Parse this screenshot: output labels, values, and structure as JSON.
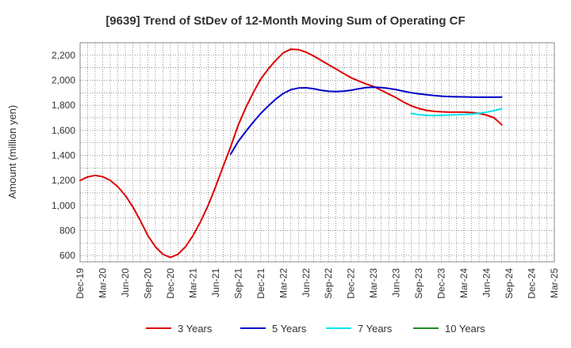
{
  "chart_data": {
    "type": "line",
    "title": "[9639]  Trend of StDev of 12-Month Moving Sum of Operating CF",
    "xlabel": "",
    "ylabel": "Amount (million yen)",
    "ylim": [
      550,
      2300
    ],
    "yticks": [
      600,
      800,
      1000,
      1200,
      1400,
      1600,
      1800,
      2000,
      2200
    ],
    "ytick_labels": [
      "600",
      "800",
      "1,000",
      "1,200",
      "1,400",
      "1,600",
      "1,800",
      "2,000",
      "2,200"
    ],
    "categories": [
      "Dec-19",
      "Mar-20",
      "Jun-20",
      "Sep-20",
      "Dec-20",
      "Mar-21",
      "Jun-21",
      "Sep-21",
      "Dec-21",
      "Mar-22",
      "Jun-22",
      "Sep-22",
      "Dec-22",
      "Mar-23",
      "Jun-23",
      "Sep-23",
      "Dec-23",
      "Mar-24",
      "Jun-24",
      "Sep-24",
      "Dec-24",
      "Mar-25"
    ],
    "grid": true,
    "legend_position": "bottom",
    "series": [
      {
        "name": "3 Years",
        "color": "#dd0000",
        "points": [
          [
            0,
            1200
          ],
          [
            0.333,
            1228
          ],
          [
            0.667,
            1240
          ],
          [
            1,
            1230
          ],
          [
            1.333,
            1200
          ],
          [
            1.667,
            1150
          ],
          [
            2,
            1080
          ],
          [
            2.333,
            990
          ],
          [
            2.667,
            880
          ],
          [
            3,
            760
          ],
          [
            3.333,
            670
          ],
          [
            3.667,
            610
          ],
          [
            4,
            585
          ],
          [
            4.333,
            610
          ],
          [
            4.667,
            670
          ],
          [
            5,
            760
          ],
          [
            5.333,
            870
          ],
          [
            5.667,
            1000
          ],
          [
            6,
            1150
          ],
          [
            6.333,
            1310
          ],
          [
            6.667,
            1470
          ],
          [
            7,
            1640
          ],
          [
            7.333,
            1780
          ],
          [
            7.667,
            1900
          ],
          [
            8,
            2010
          ],
          [
            8.333,
            2090
          ],
          [
            8.667,
            2160
          ],
          [
            9,
            2220
          ],
          [
            9.333,
            2248
          ],
          [
            9.667,
            2245
          ],
          [
            10,
            2225
          ],
          [
            10.333,
            2195
          ],
          [
            10.667,
            2160
          ],
          [
            11,
            2125
          ],
          [
            11.333,
            2090
          ],
          [
            11.667,
            2055
          ],
          [
            12,
            2020
          ],
          [
            12.333,
            1995
          ],
          [
            12.667,
            1970
          ],
          [
            13,
            1950
          ],
          [
            13.333,
            1920
          ],
          [
            13.667,
            1890
          ],
          [
            14,
            1860
          ],
          [
            14.333,
            1825
          ],
          [
            14.667,
            1795
          ],
          [
            15,
            1775
          ],
          [
            15.333,
            1760
          ],
          [
            15.667,
            1752
          ],
          [
            16,
            1748
          ],
          [
            16.333,
            1746
          ],
          [
            16.667,
            1745
          ],
          [
            17,
            1745
          ],
          [
            17.333,
            1742
          ],
          [
            17.667,
            1735
          ],
          [
            18,
            1722
          ],
          [
            18.333,
            1700
          ],
          [
            18.667,
            1645
          ]
        ]
      },
      {
        "name": "5 Years",
        "color": "#0000cc",
        "points": [
          [
            6.667,
            1410
          ],
          [
            7,
            1510
          ],
          [
            7.333,
            1590
          ],
          [
            7.667,
            1665
          ],
          [
            8,
            1735
          ],
          [
            8.333,
            1795
          ],
          [
            8.667,
            1850
          ],
          [
            9,
            1895
          ],
          [
            9.333,
            1925
          ],
          [
            9.667,
            1938
          ],
          [
            10,
            1940
          ],
          [
            10.333,
            1933
          ],
          [
            10.667,
            1920
          ],
          [
            11,
            1912
          ],
          [
            11.333,
            1910
          ],
          [
            11.667,
            1913
          ],
          [
            12,
            1920
          ],
          [
            12.333,
            1932
          ],
          [
            12.667,
            1942
          ],
          [
            13,
            1945
          ],
          [
            13.333,
            1942
          ],
          [
            13.667,
            1935
          ],
          [
            14,
            1925
          ],
          [
            14.333,
            1912
          ],
          [
            14.667,
            1900
          ],
          [
            15,
            1892
          ],
          [
            15.333,
            1885
          ],
          [
            15.667,
            1878
          ],
          [
            16,
            1873
          ],
          [
            16.333,
            1870
          ],
          [
            16.667,
            1868
          ],
          [
            17,
            1867
          ],
          [
            17.333,
            1866
          ],
          [
            17.667,
            1865
          ],
          [
            18,
            1865
          ],
          [
            18.333,
            1865
          ],
          [
            18.667,
            1866
          ]
        ]
      },
      {
        "name": "7 Years",
        "color": "#00e5ee",
        "points": [
          [
            14.667,
            1735
          ],
          [
            15,
            1725
          ],
          [
            15.333,
            1720
          ],
          [
            15.667,
            1718
          ],
          [
            16,
            1720
          ],
          [
            16.333,
            1722
          ],
          [
            16.667,
            1725
          ],
          [
            17,
            1727
          ],
          [
            17.333,
            1730
          ],
          [
            17.667,
            1736
          ],
          [
            18,
            1745
          ],
          [
            18.333,
            1758
          ],
          [
            18.667,
            1772
          ]
        ]
      },
      {
        "name": "10 Years",
        "color": "#228b22",
        "points": []
      }
    ]
  }
}
